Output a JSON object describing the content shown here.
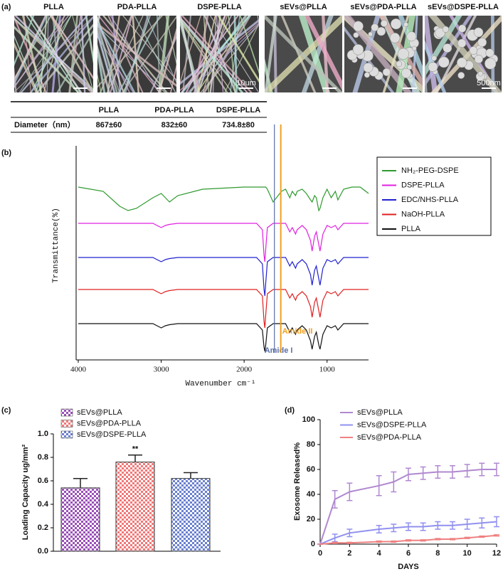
{
  "panel_a": {
    "label": "(a)",
    "images": [
      {
        "title": "PLLA"
      },
      {
        "title": "PDA-PLLA"
      },
      {
        "title": "DSPE-PLLA",
        "scale_bar": "10um"
      },
      {
        "title": "sEVs@PLLA"
      },
      {
        "title": "sEVs@PDA-PLLA"
      },
      {
        "title": "sEVs@DSPE-PLLA",
        "scale_bar": "500nm"
      }
    ],
    "table": {
      "header": [
        "PLLA",
        "PDA-PLLA",
        "DSPE-PLLA"
      ],
      "rows": [
        [
          "Diameter（nm）",
          "867±60",
          "832±60",
          "734.8±80"
        ]
      ]
    }
  },
  "chart_data": [
    {
      "type": "line",
      "panel_label": "(b)",
      "xlabel": "Wavenumber cm⁻¹",
      "ylabel": "Transmittance(%)",
      "xlim": [
        4000,
        500
      ],
      "xticks": [
        4000,
        3000,
        2000,
        1000
      ],
      "ylim": [
        0,
        100
      ],
      "legend": "right-outside",
      "x": [
        4000,
        3700,
        3500,
        3400,
        3300,
        3100,
        3000,
        2950,
        2900,
        2800,
        2500,
        2000,
        1850,
        1780,
        1760,
        1750,
        1740,
        1720,
        1650,
        1550,
        1500,
        1450,
        1420,
        1380,
        1360,
        1300,
        1250,
        1200,
        1180,
        1150,
        1130,
        1100,
        1085,
        1050,
        1000,
        950,
        900,
        870,
        800,
        700,
        600,
        500
      ],
      "series": [
        {
          "name": "NH₂-PEG-DSPE",
          "color": "#2e9a2e",
          "values": [
            79,
            77,
            70,
            68,
            69,
            74,
            76,
            74,
            72,
            75,
            78,
            79,
            79,
            79,
            79,
            79,
            79,
            78,
            72,
            77,
            78,
            74,
            77,
            75,
            77,
            78,
            76,
            73,
            72,
            75,
            74,
            68,
            69,
            74,
            78,
            74,
            77,
            73,
            78,
            79,
            79,
            76
          ]
        },
        {
          "name": "DSPE-PLLA",
          "color": "#e020e0",
          "values": [
            62,
            62,
            62,
            62,
            62,
            62,
            60,
            61,
            61.5,
            62,
            62,
            62,
            62,
            59,
            47,
            44,
            50,
            60,
            62,
            62,
            62,
            58,
            60,
            57,
            59,
            61,
            59,
            54,
            49,
            56,
            58,
            52,
            49,
            57,
            61,
            60,
            61,
            59,
            62,
            62,
            62,
            62
          ]
        },
        {
          "name": "EDC/NHS-PLLA",
          "color": "#2020d0",
          "values": [
            46,
            46,
            46,
            46,
            46,
            46,
            44,
            45,
            45.5,
            46,
            46,
            46,
            46,
            43,
            31,
            28,
            34,
            44,
            46,
            46,
            46,
            42,
            44,
            41,
            43,
            45,
            43,
            38,
            33,
            40,
            42,
            36,
            33,
            41,
            45,
            44,
            45,
            43,
            46,
            46,
            46,
            46
          ]
        },
        {
          "name": "NaOH-PLLA",
          "color": "#e02020",
          "values": [
            31,
            31,
            31,
            31,
            31,
            31,
            29,
            30,
            30.5,
            31,
            31,
            31,
            31,
            28,
            16,
            13,
            19,
            29,
            31,
            31,
            31,
            27,
            29,
            26,
            28,
            30,
            28,
            23,
            18,
            25,
            27,
            21,
            18,
            26,
            30,
            29,
            30,
            28,
            31,
            31,
            31,
            31
          ]
        },
        {
          "name": "PLLA",
          "color": "#111111",
          "values": [
            15,
            15,
            15,
            15,
            15,
            15,
            13,
            14,
            14.5,
            15,
            15,
            15,
            15,
            12,
            4,
            2,
            5,
            13,
            15,
            15,
            15,
            11,
            13,
            10,
            12,
            14,
            12,
            7,
            3,
            9,
            11,
            5,
            3,
            10,
            14,
            13,
            14,
            12,
            15,
            15,
            15,
            15
          ]
        }
      ],
      "annotations": [
        {
          "text": "Amide I",
          "x": 1635,
          "color": "#5a6fa8"
        },
        {
          "text": "Amide II",
          "x": 1558,
          "color": "#f0a020"
        }
      ]
    },
    {
      "type": "bar",
      "panel_label": "(c)",
      "ylabel": "Loading Capacity ug/mm²",
      "ylim": [
        0,
        1
      ],
      "yticks": [
        {
          "value": 0,
          "label": "0.0"
        },
        0.2,
        0.4,
        0.6,
        0.8,
        {
          "value": 1,
          "label": "1.0"
        }
      ],
      "legend": "top-left",
      "series": [
        {
          "name": "sEVs@PLLA",
          "color": "#9a4fb8",
          "values": [
            0.54
          ],
          "errors": [
            0.08
          ]
        },
        {
          "name": "sEVs@PDA-PLLA",
          "color": "#f07878",
          "values": [
            0.76
          ],
          "errors": [
            0.06
          ]
        },
        {
          "name": "sEVs@DSPE-PLLA",
          "color": "#6a80d0",
          "values": [
            0.62
          ],
          "errors": [
            0.05
          ]
        }
      ],
      "annotations": [
        {
          "text": "**",
          "series": 1
        }
      ]
    },
    {
      "type": "line",
      "panel_label": "(d)",
      "xlabel": "DAYS",
      "ylabel": "Exosome Released%",
      "xlim": [
        0,
        12
      ],
      "xticks": [
        0,
        2,
        4,
        6,
        8,
        10,
        12
      ],
      "ylim": [
        0,
        100
      ],
      "yticks": [
        0,
        20,
        40,
        60,
        80,
        100
      ],
      "legend": "top-left",
      "x": [
        0,
        1,
        2,
        4,
        5,
        6,
        7,
        8,
        9,
        10,
        11,
        12
      ],
      "series": [
        {
          "name": "sEVs@PLLA",
          "color": "#b088d0",
          "values": [
            0,
            36,
            42,
            47,
            50,
            56,
            57,
            58,
            58,
            59,
            60,
            60
          ],
          "errors": [
            0,
            7,
            7,
            8,
            8,
            5,
            5,
            5,
            5,
            5,
            5,
            5
          ]
        },
        {
          "name": "sEVs@DSPE-PLLA",
          "color": "#9090f0",
          "values": [
            0,
            5,
            9,
            12,
            13,
            14,
            14,
            15,
            15,
            16,
            17,
            18
          ],
          "errors": [
            0,
            3,
            3,
            3,
            3,
            3,
            3,
            3,
            3,
            4,
            4,
            4
          ]
        },
        {
          "name": "sEVs@PDA-PLLA",
          "color": "#f08080",
          "values": [
            0,
            1,
            1,
            2,
            2,
            3,
            3,
            4,
            4,
            5,
            6,
            7
          ],
          "errors": [
            0,
            0.5,
            0.5,
            0.5,
            0.5,
            0.5,
            0.5,
            0.5,
            0.5,
            0.5,
            0.5,
            0.5
          ]
        }
      ]
    }
  ]
}
